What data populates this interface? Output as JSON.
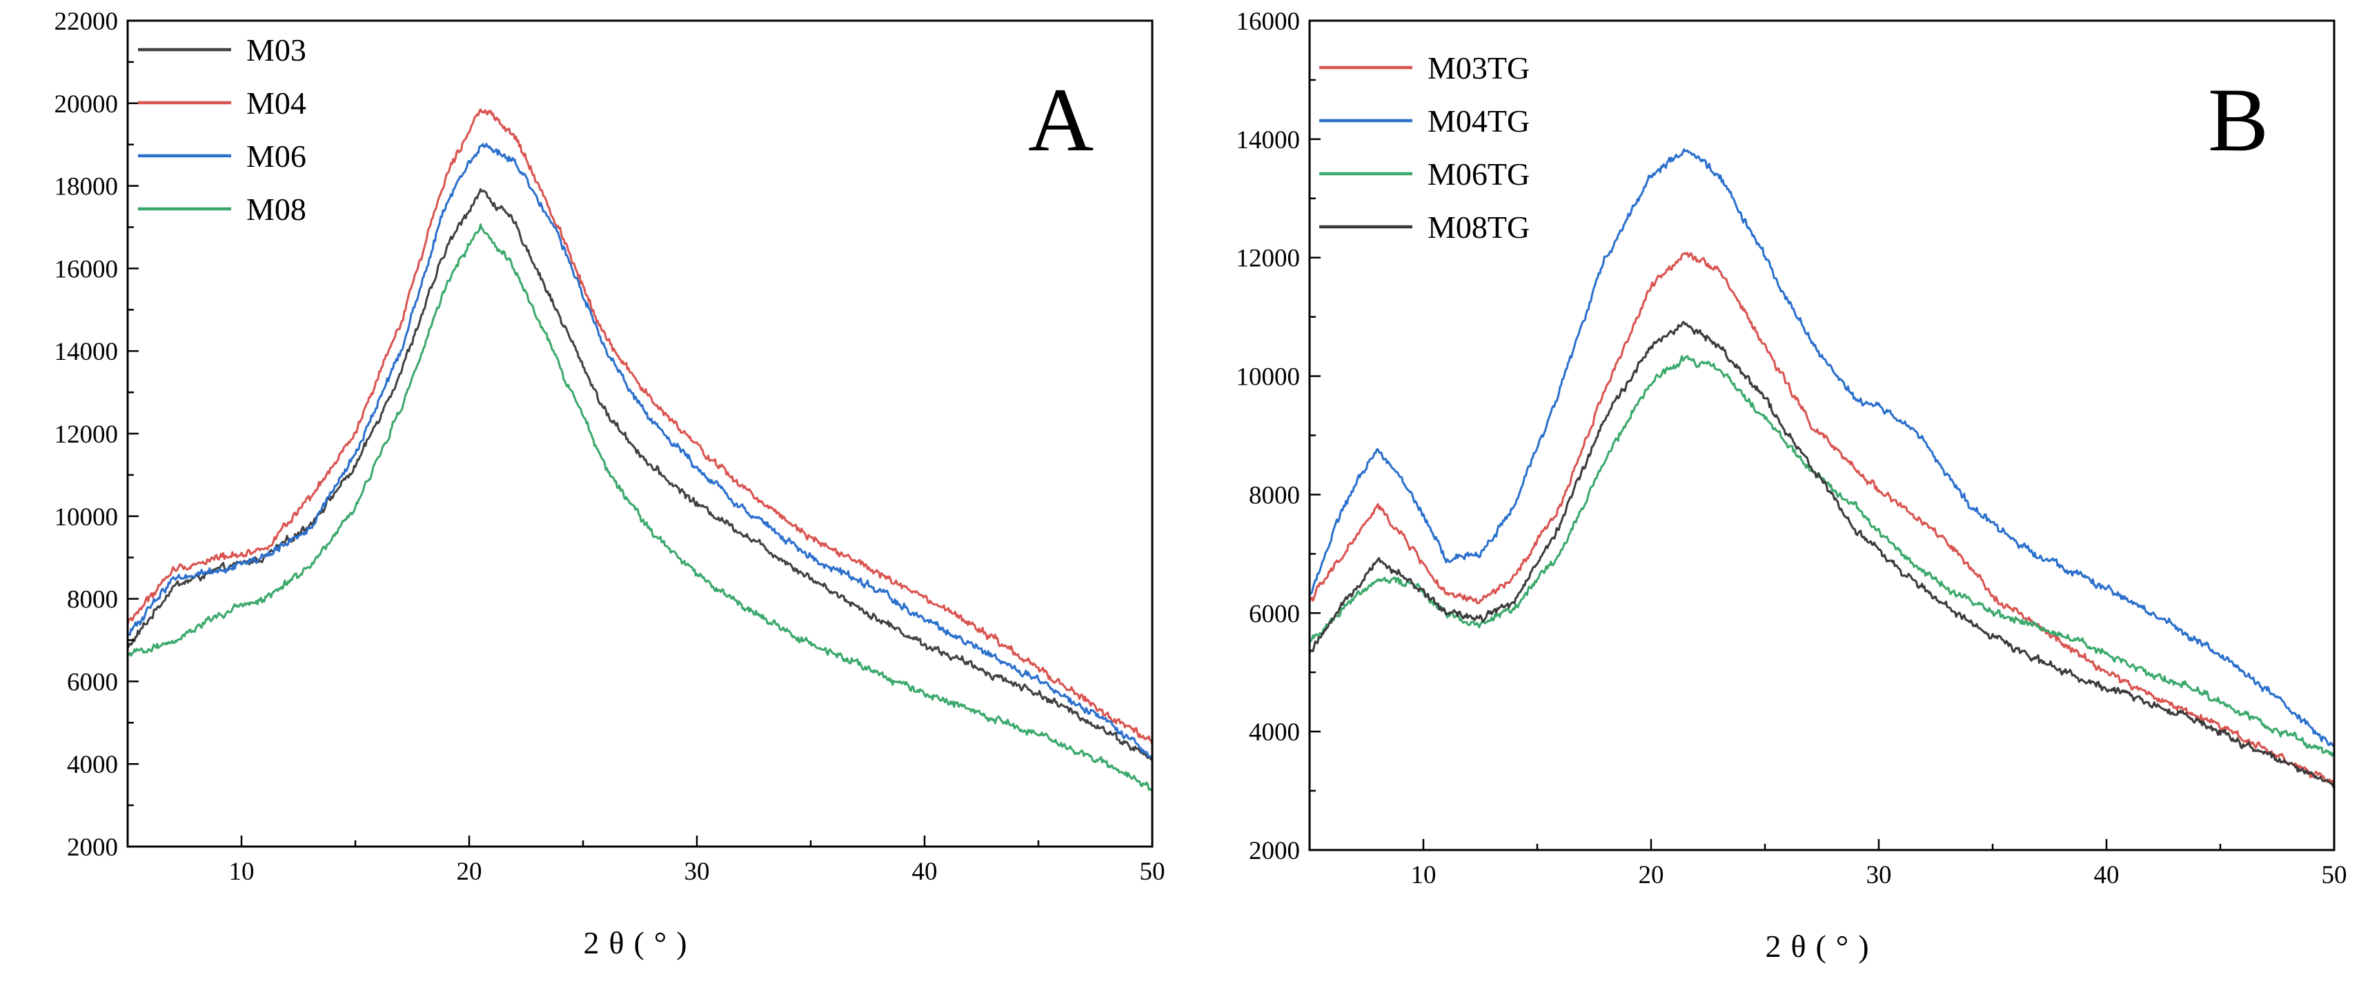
{
  "chart_data": [
    {
      "type": "line",
      "panel_label": "A",
      "xlabel": "2θ(°)",
      "ylabel": "",
      "xlim": [
        5,
        50
      ],
      "ylim": [
        2000,
        22000
      ],
      "xticks": [
        10,
        20,
        30,
        40,
        50
      ],
      "yticks": [
        2000,
        4000,
        6000,
        8000,
        10000,
        12000,
        14000,
        16000,
        18000,
        20000,
        22000
      ],
      "grid": false,
      "legend_position": "top-left",
      "series": [
        {
          "name": "M03",
          "color": "#404040",
          "x": [
            5,
            7,
            9,
            11,
            13,
            15,
            17,
            19,
            20.5,
            22,
            24,
            26,
            28,
            30,
            32,
            35,
            38,
            40,
            42,
            45,
            48,
            50
          ],
          "y": [
            6800,
            8300,
            8700,
            9000,
            9800,
            11200,
            13500,
            16500,
            17900,
            17100,
            14800,
            12500,
            11200,
            10300,
            9600,
            8500,
            7500,
            6900,
            6400,
            5700,
            4800,
            4100
          ]
        },
        {
          "name": "M04",
          "color": "#d9534f",
          "x": [
            5,
            7,
            9,
            11,
            13,
            15,
            17,
            19,
            20.5,
            22,
            24,
            26,
            28,
            30,
            32,
            35,
            38,
            40,
            42,
            45,
            48,
            50
          ],
          "y": [
            7400,
            8700,
            9000,
            9200,
            10400,
            12000,
            14700,
            18300,
            19900,
            19200,
            16900,
            14300,
            12800,
            11700,
            10700,
            9500,
            8600,
            8000,
            7400,
            6300,
            5200,
            4500
          ]
        },
        {
          "name": "M06",
          "color": "#2a6fcc",
          "x": [
            5,
            7,
            9,
            11,
            13,
            15,
            17,
            19,
            20.5,
            22,
            24,
            26,
            28,
            30,
            32,
            35,
            38,
            40,
            42,
            45,
            48,
            50
          ],
          "y": [
            7100,
            8500,
            8700,
            9000,
            9700,
            11500,
            14000,
            17600,
            19000,
            18600,
            16700,
            14000,
            12300,
            11200,
            10200,
            9000,
            8200,
            7500,
            6900,
            6000,
            5000,
            4200
          ]
        },
        {
          "name": "M08",
          "color": "#3aa86b",
          "x": [
            5,
            7,
            9,
            11,
            13,
            15,
            17,
            19,
            20.5,
            22,
            24,
            26,
            28,
            30,
            32,
            35,
            38,
            40,
            42,
            45,
            48,
            50
          ],
          "y": [
            6600,
            7000,
            7600,
            8000,
            8800,
            10200,
            12600,
            15600,
            17000,
            16000,
            13600,
            11200,
            9600,
            8600,
            7800,
            6900,
            6200,
            5700,
            5300,
            4700,
            4000,
            3400
          ]
        }
      ]
    },
    {
      "type": "line",
      "panel_label": "B",
      "xlabel": "2θ(°)",
      "ylabel": "",
      "xlim": [
        5,
        50
      ],
      "ylim": [
        2000,
        16000
      ],
      "xticks": [
        10,
        20,
        30,
        40,
        50
      ],
      "yticks": [
        2000,
        4000,
        6000,
        8000,
        10000,
        12000,
        14000,
        16000
      ],
      "grid": false,
      "legend_position": "top-left",
      "series": [
        {
          "name": "M03TG",
          "color": "#d9534f",
          "x": [
            5,
            6.5,
            8,
            9.5,
            11,
            12.5,
            14,
            16,
            18,
            20,
            21.5,
            23,
            25,
            27,
            29,
            31,
            33,
            35,
            38,
            40,
            42,
            45,
            48,
            50
          ],
          "y": [
            6200,
            7000,
            7800,
            7100,
            6300,
            6200,
            6600,
            7800,
            9800,
            11500,
            12100,
            11800,
            10500,
            9200,
            8400,
            7800,
            7200,
            6300,
            5500,
            5000,
            4600,
            4100,
            3500,
            3100
          ]
        },
        {
          "name": "M04TG",
          "color": "#2a6fcc",
          "x": [
            5,
            6.5,
            8,
            9.5,
            11,
            12.5,
            14,
            16,
            18,
            20,
            21.5,
            23,
            25,
            27,
            29,
            30.5,
            32,
            34,
            36,
            38,
            40,
            42,
            45,
            48,
            50
          ],
          "y": [
            6300,
            7800,
            8800,
            8000,
            6900,
            7000,
            7800,
            9800,
            12000,
            13400,
            13800,
            13400,
            12000,
            10600,
            9600,
            9400,
            8900,
            7800,
            7200,
            6800,
            6400,
            6000,
            5300,
            4400,
            3700
          ]
        },
        {
          "name": "M06TG",
          "color": "#3aa86b",
          "x": [
            5,
            6.5,
            8,
            9.5,
            11,
            12.5,
            14,
            16,
            18,
            20,
            21.5,
            23,
            25,
            27,
            29,
            31,
            33,
            35,
            37,
            39,
            41,
            44,
            47,
            50
          ],
          "y": [
            5500,
            6100,
            6600,
            6500,
            6000,
            5800,
            6100,
            7000,
            8600,
            9900,
            10300,
            10100,
            9300,
            8400,
            7800,
            7000,
            6400,
            6000,
            5800,
            5500,
            5100,
            4700,
            4100,
            3600
          ]
        },
        {
          "name": "M08TG",
          "color": "#3a3a3a",
          "x": [
            5,
            6.5,
            8,
            9.5,
            11,
            12.5,
            14,
            16,
            18,
            20,
            21.5,
            23,
            25,
            27,
            29,
            31,
            33,
            35,
            37,
            39,
            41,
            44,
            47,
            50
          ],
          "y": [
            5300,
            6200,
            6900,
            6500,
            6000,
            5900,
            6200,
            7500,
            9300,
            10500,
            10900,
            10500,
            9600,
            8500,
            7400,
            6700,
            6100,
            5600,
            5200,
            4900,
            4600,
            4200,
            3600,
            3100
          ]
        }
      ]
    }
  ]
}
